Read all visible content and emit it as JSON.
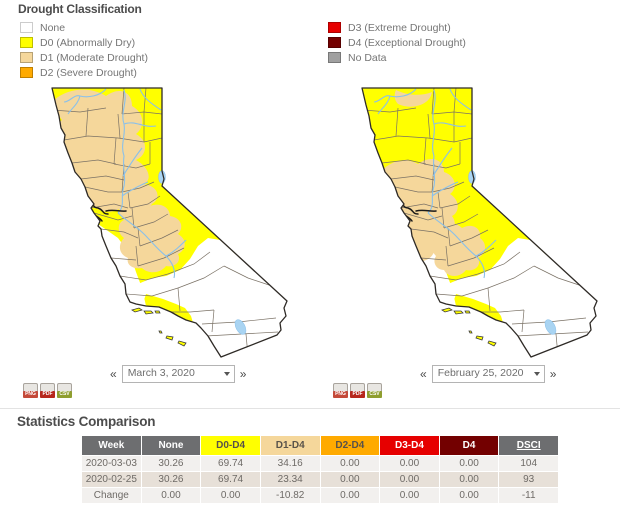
{
  "legend": {
    "title": "Drought Classification",
    "items": [
      {
        "code": "none",
        "label": "None",
        "color": "#ffffff"
      },
      {
        "code": "d0",
        "label": "D0 (Abnormally Dry)",
        "color": "#ffff00"
      },
      {
        "code": "d1",
        "label": "D1 (Moderate Drought)",
        "color": "#f5d79b"
      },
      {
        "code": "d2",
        "label": "D2 (Severe Drought)",
        "color": "#ffaa00"
      },
      {
        "code": "d3",
        "label": "D3 (Extreme Drought)",
        "color": "#e60000"
      },
      {
        "code": "d4",
        "label": "D4 (Exceptional Drought)",
        "color": "#730000"
      },
      {
        "code": "nodata",
        "label": "No Data",
        "color": "#a0a0a0"
      }
    ]
  },
  "icons": {
    "prev": "«",
    "next": "»"
  },
  "maps": [
    {
      "date": "March 3, 2020",
      "variant": "a",
      "downloads": [
        {
          "label": "PNG",
          "color": "#c44a3a"
        },
        {
          "label": "PDF",
          "color": "#b7271d"
        },
        {
          "label": "CSV",
          "color": "#8f9e2f"
        }
      ]
    },
    {
      "date": "February 25, 2020",
      "variant": "b",
      "downloads": [
        {
          "label": "PNG",
          "color": "#c44a3a"
        },
        {
          "label": "PDF",
          "color": "#b7271d"
        },
        {
          "label": "CSV",
          "color": "#8f9e2f"
        }
      ]
    }
  ],
  "map_palette": {
    "d0": "#ffff00",
    "d1": "#f5d79b",
    "none": "#ffffff",
    "water_fill": "#a9d4f2",
    "water_line": "#8ac0ea",
    "county_line": "#7a7165",
    "state_border": "#2e2a26",
    "bay": "#1a1a1a"
  },
  "statistics": {
    "title": "Statistics Comparison",
    "columns": [
      {
        "label": "Week",
        "bg": "#6d6e70",
        "fg": "#ffffff"
      },
      {
        "label": "None",
        "bg": "#6d6e70",
        "fg": "#ffffff"
      },
      {
        "label": "D0-D4",
        "bg": "#ffff00",
        "fg": "#58524a"
      },
      {
        "label": "D1-D4",
        "bg": "#f5d79b",
        "fg": "#58524a"
      },
      {
        "label": "D2-D4",
        "bg": "#ffaa00",
        "fg": "#58524a"
      },
      {
        "label": "D3-D4",
        "bg": "#e60000",
        "fg": "#ffffff"
      },
      {
        "label": "D4",
        "bg": "#730000",
        "fg": "#ffffff"
      },
      {
        "label": "DSCI",
        "bg": "#6d6e70",
        "fg": "#ffffff",
        "underline": true
      }
    ],
    "rows": [
      [
        "2020-03-03",
        "30.26",
        "69.74",
        "34.16",
        "0.00",
        "0.00",
        "0.00",
        "104"
      ],
      [
        "2020-02-25",
        "30.26",
        "69.74",
        "23.34",
        "0.00",
        "0.00",
        "0.00",
        "93"
      ],
      [
        "Change",
        "0.00",
        "0.00",
        "-10.82",
        "0.00",
        "0.00",
        "0.00",
        "-11"
      ]
    ]
  }
}
